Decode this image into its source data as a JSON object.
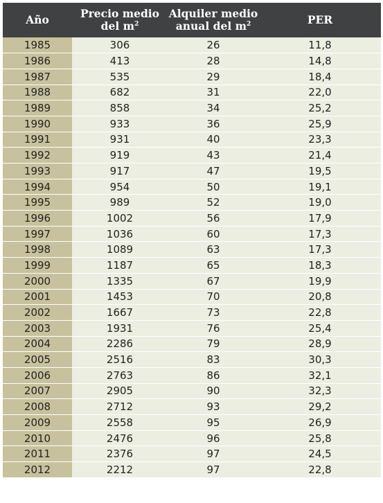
{
  "table": {
    "headers": {
      "year": "Año",
      "price_line1": "Precio medio",
      "price_line2": "del m",
      "rent_line1": "Alquiler medio",
      "rent_line2": "anual del m",
      "sup": "2",
      "per": "PER"
    },
    "rows": [
      [
        "1985",
        "306",
        "26",
        "11,8"
      ],
      [
        "1986",
        "413",
        "28",
        "14,8"
      ],
      [
        "1987",
        "535",
        "29",
        "18,4"
      ],
      [
        "1988",
        "682",
        "31",
        "22,0"
      ],
      [
        "1989",
        "858",
        "34",
        "25,2"
      ],
      [
        "1990",
        "933",
        "36",
        "25,9"
      ],
      [
        "1991",
        "931",
        "40",
        "23,3"
      ],
      [
        "1992",
        "919",
        "43",
        "21,4"
      ],
      [
        "1993",
        "917",
        "47",
        "19,5"
      ],
      [
        "1994",
        "954",
        "50",
        "19,1"
      ],
      [
        "1995",
        "989",
        "52",
        "19,0"
      ],
      [
        "1996",
        "1002",
        "56",
        "17,9"
      ],
      [
        "1997",
        "1036",
        "60",
        "17,3"
      ],
      [
        "1998",
        "1089",
        "63",
        "17,3"
      ],
      [
        "1999",
        "1187",
        "65",
        "18,3"
      ],
      [
        "2000",
        "1335",
        "67",
        "19,9"
      ],
      [
        "2001",
        "1453",
        "70",
        "20,8"
      ],
      [
        "2002",
        "1667",
        "73",
        "22,8"
      ],
      [
        "2003",
        "1931",
        "76",
        "25,4"
      ],
      [
        "2004",
        "2286",
        "79",
        "28,9"
      ],
      [
        "2005",
        "2516",
        "83",
        "30,3"
      ],
      [
        "2006",
        "2763",
        "86",
        "32,1"
      ],
      [
        "2007",
        "2905",
        "90",
        "32,3"
      ],
      [
        "2008",
        "2712",
        "93",
        "29,2"
      ],
      [
        "2009",
        "2558",
        "95",
        "26,9"
      ],
      [
        "2010",
        "2476",
        "96",
        "25,8"
      ],
      [
        "2011",
        "2376",
        "97",
        "24,5"
      ],
      [
        "2012",
        "2212",
        "97",
        "22,8"
      ]
    ]
  }
}
